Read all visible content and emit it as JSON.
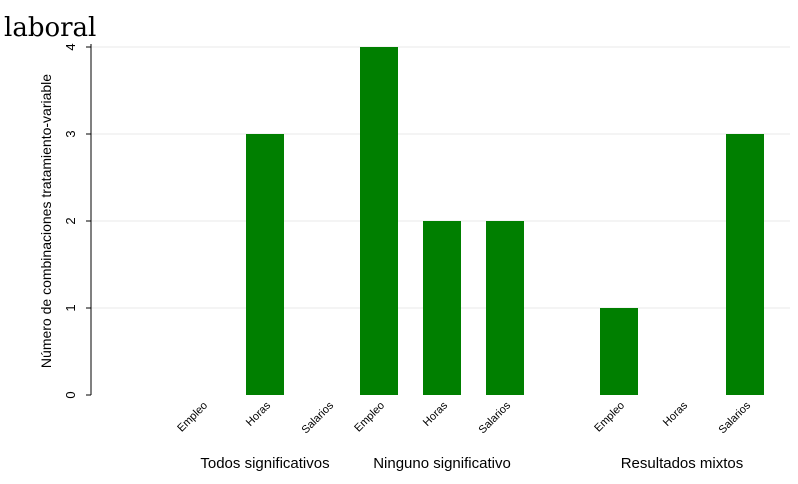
{
  "chart_data": {
    "type": "bar",
    "title": "laboral",
    "ylabel": "Número de combinaciones tratamiento-variable",
    "ylim": [
      0,
      4
    ],
    "yticks": [
      0,
      1,
      2,
      3,
      4
    ],
    "grid": true,
    "bar_color": "#007f00",
    "groups": [
      {
        "label": "Todos significativos",
        "categories": [
          "Empleo",
          "Horas",
          "Salarios"
        ],
        "values": [
          0,
          3,
          0
        ]
      },
      {
        "label": "Ninguno significativo",
        "categories": [
          "Empleo",
          "Horas",
          "Salarios"
        ],
        "values": [
          4,
          2,
          2
        ]
      },
      {
        "label": "Resultados mixtos",
        "categories": [
          "Empleo",
          "Horas",
          "Salarios"
        ],
        "values": [
          1,
          0,
          3
        ]
      }
    ]
  }
}
